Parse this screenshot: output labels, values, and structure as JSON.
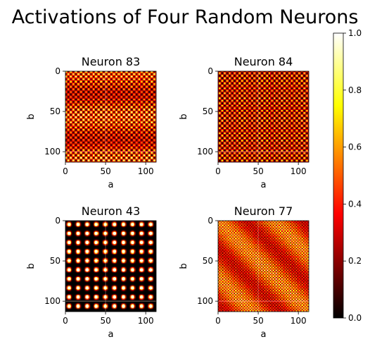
{
  "title": "Activations of Four Random Neurons",
  "chart_data": [
    {
      "type": "heatmap",
      "title": "Neuron 83",
      "xlabel": "a",
      "ylabel": "b",
      "xticks": [
        0,
        50,
        100
      ],
      "yticks": [
        0,
        50,
        100
      ],
      "xlim": [
        0,
        113
      ],
      "ylim": [
        113,
        0
      ],
      "grid_size": 113,
      "pattern": "dense checker of bright cells with slightly darker horizontal bands",
      "value_range": [
        0,
        1
      ]
    },
    {
      "type": "heatmap",
      "title": "Neuron 84",
      "xlabel": "a",
      "ylabel": "b",
      "xticks": [
        0,
        50,
        100
      ],
      "yticks": [
        0,
        50,
        100
      ],
      "xlim": [
        0,
        113
      ],
      "ylim": [
        113,
        0
      ],
      "grid_size": 113,
      "pattern": "dense checker of orange cells on dark background",
      "value_range": [
        0,
        1
      ]
    },
    {
      "type": "heatmap",
      "title": "Neuron 43",
      "xlabel": "a",
      "ylabel": "b",
      "xticks": [
        0,
        50,
        100
      ],
      "yticks": [
        0,
        50,
        100
      ],
      "xlim": [
        0,
        113
      ],
      "ylim": [
        113,
        0
      ],
      "grid_size": 113,
      "pattern": "large bright square blobs on black, about 10 by 10",
      "value_range": [
        0,
        1
      ]
    },
    {
      "type": "heatmap",
      "title": "Neuron 77",
      "xlabel": "a",
      "ylabel": "b",
      "xticks": [
        0,
        50,
        100
      ],
      "yticks": [
        0,
        50,
        100
      ],
      "xlim": [
        0,
        113
      ],
      "ylim": [
        113,
        0
      ],
      "grid_size": 113,
      "pattern": "fine high-frequency grid of red and yellow cells",
      "value_range": [
        0,
        1
      ]
    }
  ],
  "colorbar": {
    "colormap": "hot",
    "ticks": [
      "0.0",
      "0.2",
      "0.4",
      "0.6",
      "0.8",
      "1.0"
    ],
    "range": [
      0,
      1
    ]
  }
}
